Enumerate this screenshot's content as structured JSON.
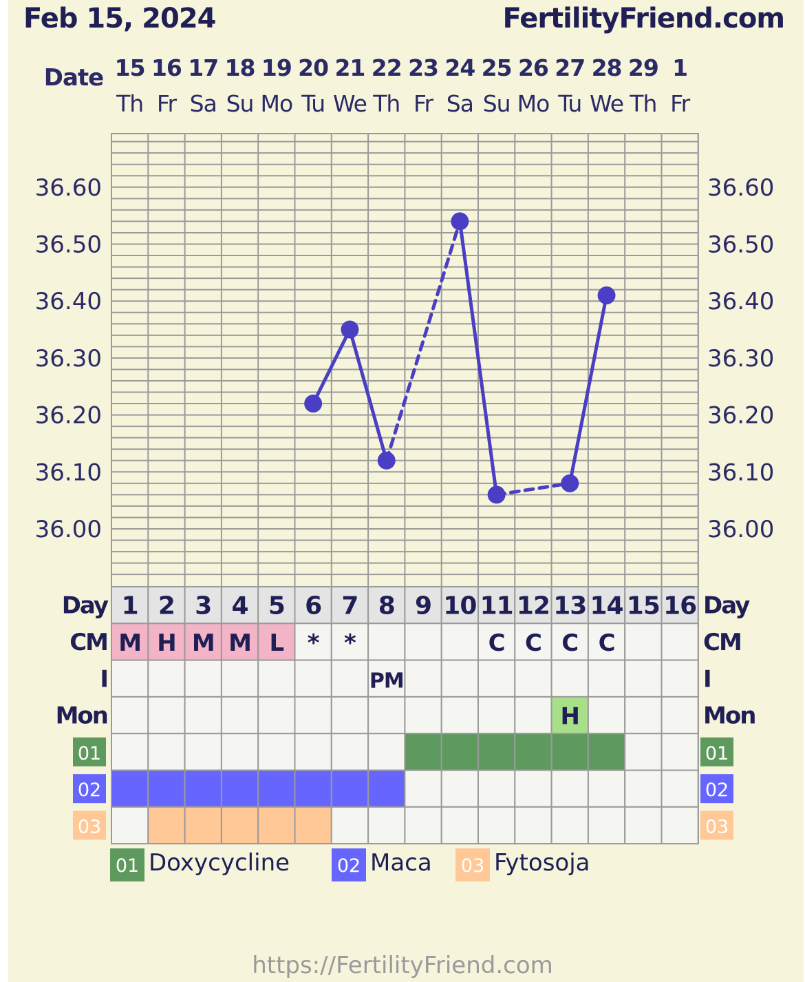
{
  "header": {
    "date": "Feb 15, 2024",
    "site": "FertilityFriend.com"
  },
  "footer": {
    "url": "https://FertilityFriend.com"
  },
  "labels": {
    "date": "Date",
    "day": "Day",
    "cm": "CM",
    "i": "I",
    "mon": "Mon"
  },
  "colors": {
    "background": "#f7f4dc",
    "line": "#4a3fc4",
    "cm_menses": "#f2b4c6",
    "mon_high": "#a8e08a",
    "doxycycline": "#5e9a5e",
    "maca": "#6666ff",
    "fytosoja": "#ffc896",
    "grid": "#9a9a9a",
    "cell": "#f5f5f1",
    "day_header": "#e4e4e4"
  },
  "chart_data": {
    "type": "line",
    "title": "",
    "dates": [
      "15",
      "16",
      "17",
      "18",
      "19",
      "20",
      "21",
      "22",
      "23",
      "24",
      "25",
      "26",
      "27",
      "28",
      "29",
      "1"
    ],
    "weekdays": [
      "Th",
      "Fr",
      "Sa",
      "Su",
      "Mo",
      "Tu",
      "We",
      "Th",
      "Fr",
      "Sa",
      "Su",
      "Mo",
      "Tu",
      "We",
      "Th",
      "Fr"
    ],
    "cycle_days": [
      "1",
      "2",
      "3",
      "4",
      "5",
      "6",
      "7",
      "8",
      "9",
      "10",
      "11",
      "12",
      "13",
      "14",
      "15",
      "16"
    ],
    "y_ticks": [
      "36.00",
      "36.10",
      "36.20",
      "36.30",
      "36.40",
      "36.50",
      "36.60"
    ],
    "ylim": [
      35.92,
      36.7
    ],
    "temperatures": [
      null,
      null,
      null,
      null,
      null,
      36.22,
      36.35,
      36.12,
      null,
      36.54,
      36.06,
      null,
      36.08,
      36.41,
      null,
      null
    ],
    "line_segments": [
      {
        "from": 6,
        "to": 7,
        "style": "solid"
      },
      {
        "from": 7,
        "to": 8,
        "style": "solid"
      },
      {
        "from": 8,
        "to": 10,
        "style": "dashed"
      },
      {
        "from": 10,
        "to": 11,
        "style": "solid"
      },
      {
        "from": 11,
        "to": 13,
        "style": "dashed"
      },
      {
        "from": 13,
        "to": 14,
        "style": "solid"
      }
    ],
    "cm": [
      "M",
      "H",
      "M",
      "M",
      "L",
      "*",
      "*",
      "",
      "",
      "",
      "C",
      "C",
      "C",
      "C",
      "",
      ""
    ],
    "cm_menses_days": [
      1,
      2,
      3,
      4,
      5
    ],
    "intercourse": [
      "",
      "",
      "",
      "",
      "",
      "",
      "",
      "PM",
      "",
      "",
      "",
      "",
      "",
      "",
      "",
      ""
    ],
    "monitor": [
      "",
      "",
      "",
      "",
      "",
      "",
      "",
      "",
      "",
      "",
      "",
      "",
      "H",
      "",
      "",
      ""
    ],
    "medications": [
      {
        "code": "01",
        "name": "Doxycycline",
        "color": "#5e9a5e",
        "days": [
          9,
          10,
          11,
          12,
          13,
          14
        ]
      },
      {
        "code": "02",
        "name": "Maca",
        "color": "#6666ff",
        "days": [
          1,
          2,
          3,
          4,
          5,
          6,
          7,
          8
        ]
      },
      {
        "code": "03",
        "name": "Fytosoja",
        "color": "#ffc896",
        "days": [
          2,
          3,
          4,
          5,
          6
        ]
      }
    ]
  }
}
